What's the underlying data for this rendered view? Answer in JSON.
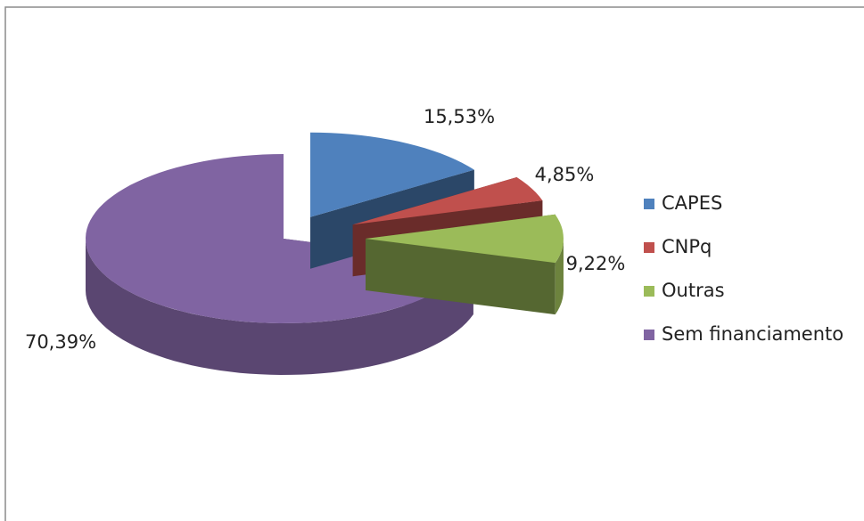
{
  "chart_data": {
    "type": "pie3d",
    "categories": [
      "CAPES",
      "CNPq",
      "Outras",
      "Sem financiamento"
    ],
    "values": [
      15.53,
      4.85,
      9.22,
      70.39
    ],
    "value_labels": [
      "15,53%",
      "4,85%",
      "9,22%",
      "70,39%"
    ],
    "colors": [
      "#4f81bd",
      "#c0504d",
      "#9bbb59",
      "#8064a2"
    ],
    "legend": "right"
  }
}
